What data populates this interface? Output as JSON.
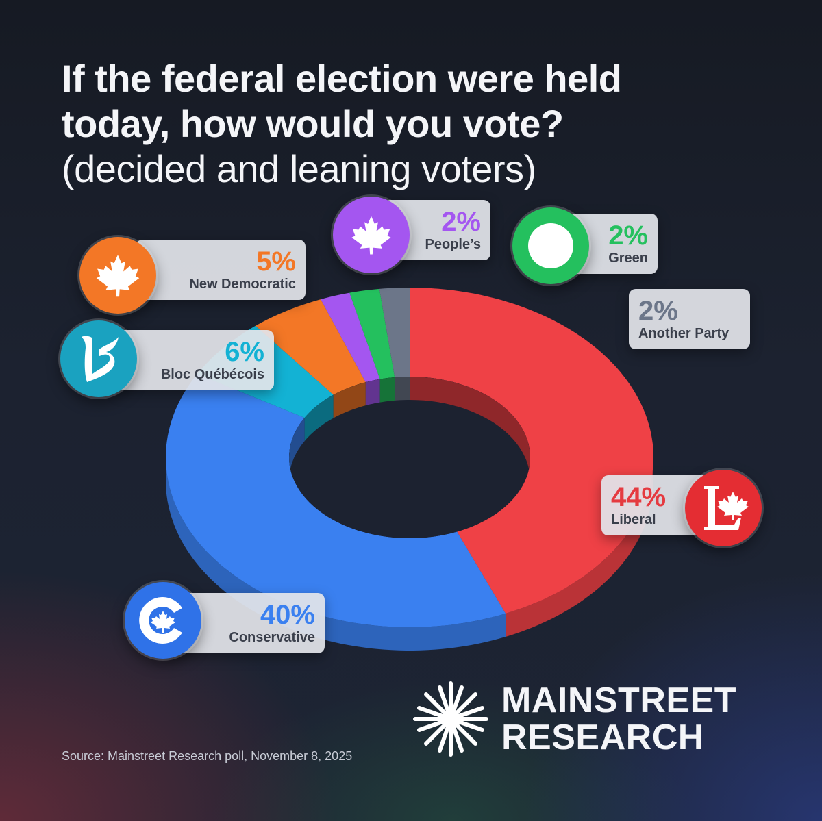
{
  "title": {
    "line1": "If the federal election were held",
    "line2": "today, how would you vote?",
    "line3": "(decided and leaning voters)"
  },
  "chart_data": {
    "type": "pie",
    "donut": true,
    "unit": "%",
    "start": "12 o'clock, clockwise",
    "series": [
      {
        "name": "Liberal",
        "label": "44%",
        "value": 44,
        "color": "#ef4146",
        "icon": "liberal-logo-icon"
      },
      {
        "name": "Conservative",
        "label": "40%",
        "value": 40,
        "color": "#3a80f0",
        "icon": "conservative-logo-icon"
      },
      {
        "name": "Bloc Québécois",
        "label": "6%",
        "value": 6,
        "color": "#13b2d4",
        "icon": "bloc-logo-icon"
      },
      {
        "name": "New Democratic",
        "label": "5%",
        "value": 5,
        "color": "#f37726",
        "icon": "maple-leaf-icon"
      },
      {
        "name": "People’s",
        "label": "2%",
        "value": 2,
        "color": "#a456f0",
        "icon": "maple-leaf-icon"
      },
      {
        "name": "Green",
        "label": "2%",
        "value": 2,
        "color": "#24c05e",
        "icon": "green-circle-icon"
      },
      {
        "name": "Another Party",
        "label": "2%",
        "value": 2,
        "color": "#6c7689",
        "icon": ""
      }
    ]
  },
  "source": "Source: Mainstreet Research poll, November 8, 2025",
  "brand": {
    "line1": "MAINSTREET",
    "line2": "RESEARCH"
  }
}
